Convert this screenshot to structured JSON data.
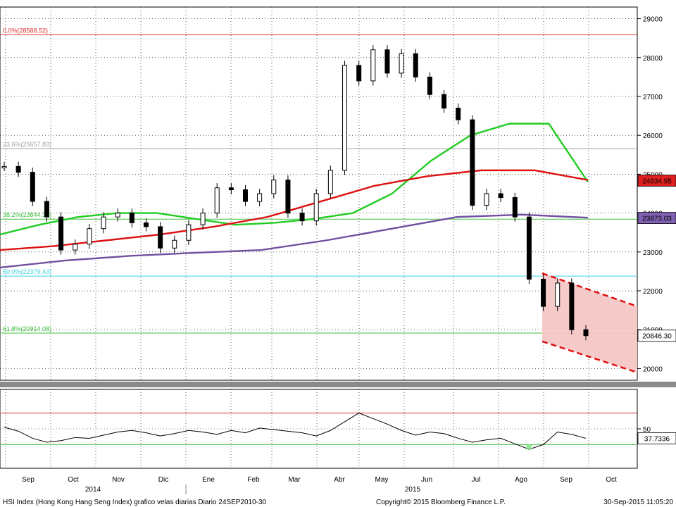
{
  "chart_data": {
    "type": "candlestick",
    "ticker_note": "HSI Index (Hong Kong Hang Seng Index) grafico velas diarias  Diario 24SEP2010-30",
    "copyright": "Copyright© 2015 Bloomberg Finance L.P.",
    "timestamp": "30-Sep-2015 11:05:20",
    "x_months": [
      "Sep",
      "Oct",
      "Nov",
      "Dic",
      "Ene",
      "Feb",
      "Mar",
      "Abr",
      "May",
      "Jun",
      "Jul",
      "Ago",
      "Sep",
      "Oct"
    ],
    "x_years": [
      "2014",
      "2015"
    ],
    "price_axis": {
      "ylim": [
        19700,
        29300
      ],
      "ticks": [
        20000,
        21000,
        22000,
        23000,
        24000,
        25000,
        26000,
        27000,
        28000,
        29000
      ]
    },
    "fib_levels": [
      {
        "label": "0.0%(28588.52)",
        "value": 28588.52,
        "color": "#e03030"
      },
      {
        "label": "23.6%(25657.83)",
        "value": 25657.83,
        "color": "#a0a0a0"
      },
      {
        "label": "38.2%(23844.33)",
        "value": 23844.33,
        "color": "#40c040"
      },
      {
        "label": "50.0%(22379.43)",
        "value": 22379.43,
        "color": "#40d0e0"
      },
      {
        "label": "61.8%(20914.08)",
        "value": 20914.08,
        "color": "#40c040"
      }
    ],
    "price_tags": [
      {
        "label": "24834.95",
        "value": 24834.95,
        "bg": "#e02020",
        "fg": "#ffffff"
      },
      {
        "label": "23873.03",
        "value": 23873.03,
        "bg": "#8060b0",
        "fg": "#ffffff"
      },
      {
        "label": "20846.30",
        "value": 20846.3,
        "bg": "#ffffff",
        "fg": "#000000"
      }
    ],
    "moving_averages": [
      {
        "color": "#22cc22",
        "values": [
          23450,
          23700,
          23900,
          24000,
          24000,
          23850,
          23700,
          23750,
          23850,
          24000,
          24500,
          25350,
          26000,
          26300,
          26300,
          24800
        ]
      },
      {
        "color": "#dd1111",
        "values": [
          23050,
          23150,
          23300,
          23450,
          23650,
          23900,
          24300,
          24700,
          24950,
          25100,
          25100,
          24850
        ]
      },
      {
        "color": "#7050a0",
        "values": [
          22600,
          22780,
          22900,
          22980,
          23050,
          23300,
          23600,
          23900,
          23960,
          23880
        ]
      }
    ],
    "closes": [
      25200,
      25050,
      24300,
      23900,
      23050,
      23200,
      23600,
      23900,
      24000,
      23750,
      23650,
      23100,
      23300,
      23700,
      24000,
      24650,
      24600,
      24300,
      24500,
      24850,
      24000,
      23800,
      24500,
      25100,
      27800,
      27400,
      28200,
      27600,
      28100,
      27500,
      27050,
      26700,
      26400,
      24200,
      24500,
      24400,
      23900,
      22300,
      21600,
      22200,
      21000,
      20846
    ],
    "channel": {
      "upper": [
        22450,
        21600
      ],
      "lower": [
        20700,
        19900
      ]
    },
    "rsi": {
      "ticks": [
        50
      ],
      "overbought": 70,
      "oversold": 30,
      "last_label": "37.7336",
      "values": [
        52,
        47,
        38,
        33,
        35,
        39,
        38,
        42,
        46,
        48,
        45,
        41,
        44,
        48,
        46,
        43,
        48,
        45,
        51,
        49,
        47,
        45,
        41,
        48,
        59,
        70,
        63,
        56,
        48,
        42,
        46,
        44,
        38,
        33,
        36,
        38,
        31,
        24,
        30,
        46,
        43,
        38
      ]
    }
  }
}
